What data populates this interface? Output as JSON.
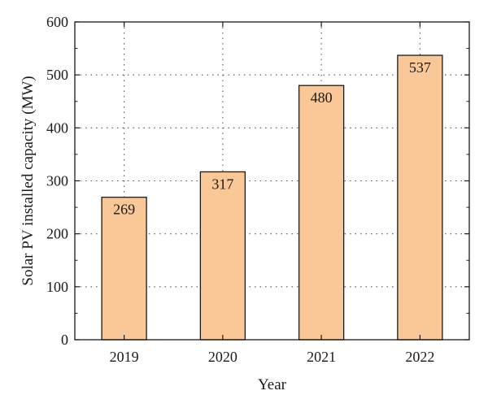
{
  "chart_data": {
    "type": "bar",
    "title": "",
    "xlabel": "Year",
    "ylabel": "Solar PV installed capacity (MW)",
    "categories": [
      "2019",
      "2020",
      "2021",
      "2022"
    ],
    "values": [
      269,
      317,
      480,
      537
    ],
    "data_labels": [
      "269",
      "317",
      "480",
      "537"
    ],
    "ylim": [
      0,
      600
    ],
    "yticks": [
      "0",
      "100",
      "200",
      "300",
      "400",
      "500",
      "600"
    ],
    "grid": true,
    "grid_style": "dotted",
    "bar_color": "#fac896",
    "bar_edge_color": "#1a1a1a"
  }
}
